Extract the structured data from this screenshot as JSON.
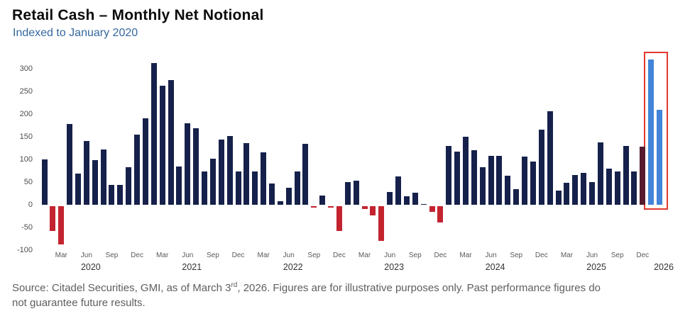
{
  "title": "Retail Cash – Monthly Net Notional",
  "subtitle": "Indexed to January 2020",
  "source_note": {
    "prefix": "Source: Citadel Securities, GMI, as of March 3",
    "superscript": "rd",
    "suffix_line1": ", 2026. Figures are for illustrative purposes only. Past performance figures do",
    "line2": "not guarantee future results."
  },
  "colors": {
    "positive": "#16214B",
    "negative": "#C3242F",
    "highlight": "#4184D9",
    "darkred": "#571A2E",
    "box_outline": "#E0392E",
    "subtitle_text": "#35679E"
  },
  "chart_data": {
    "type": "bar",
    "title": "Retail Cash – Monthly Net Notional",
    "subtitle": "Indexed to January 2020",
    "xlabel": "",
    "ylabel": "",
    "ylim": [
      -100,
      330
    ],
    "yticks": [
      300,
      250,
      200,
      150,
      100,
      50,
      0,
      -50,
      -100
    ],
    "grid": false,
    "legend": "none",
    "month_names": {
      "3": "Mar",
      "6": "Jun",
      "9": "Sep",
      "12": "Dec"
    },
    "year_ticks": [
      {
        "label": "2020",
        "month_index": 5
      },
      {
        "label": "2021",
        "month_index": 17
      },
      {
        "label": "2022",
        "month_index": 29
      },
      {
        "label": "2023",
        "month_index": 41
      },
      {
        "label": "2024",
        "month_index": 53
      },
      {
        "label": "2025",
        "month_index": 65
      },
      {
        "label": "2026",
        "month_index": 73
      }
    ],
    "highlight_from": "2026-01",
    "highlight_note": "red box around Jan–Feb 2026 blue bars",
    "color_overrides": {
      "2025-12": "darkred"
    },
    "points": [
      {
        "m": "2020-01",
        "v": 100
      },
      {
        "m": "2020-02",
        "v": -55
      },
      {
        "m": "2020-03",
        "v": -85
      },
      {
        "m": "2020-04",
        "v": 178
      },
      {
        "m": "2020-05",
        "v": 68
      },
      {
        "m": "2020-06",
        "v": 140
      },
      {
        "m": "2020-07",
        "v": 98
      },
      {
        "m": "2020-08",
        "v": 122
      },
      {
        "m": "2020-09",
        "v": 43
      },
      {
        "m": "2020-10",
        "v": 43
      },
      {
        "m": "2020-11",
        "v": 83
      },
      {
        "m": "2020-12",
        "v": 155
      },
      {
        "m": "2021-01",
        "v": 190
      },
      {
        "m": "2021-02",
        "v": 312
      },
      {
        "m": "2021-03",
        "v": 262
      },
      {
        "m": "2021-04",
        "v": 275
      },
      {
        "m": "2021-05",
        "v": 84
      },
      {
        "m": "2021-06",
        "v": 180
      },
      {
        "m": "2021-07",
        "v": 168
      },
      {
        "m": "2021-08",
        "v": 74
      },
      {
        "m": "2021-09",
        "v": 102
      },
      {
        "m": "2021-10",
        "v": 143
      },
      {
        "m": "2021-11",
        "v": 152
      },
      {
        "m": "2021-12",
        "v": 73
      },
      {
        "m": "2022-01",
        "v": 136
      },
      {
        "m": "2022-02",
        "v": 73
      },
      {
        "m": "2022-03",
        "v": 115
      },
      {
        "m": "2022-04",
        "v": 47
      },
      {
        "m": "2022-05",
        "v": 8
      },
      {
        "m": "2022-06",
        "v": 38
      },
      {
        "m": "2022-07",
        "v": 73
      },
      {
        "m": "2022-08",
        "v": 135
      },
      {
        "m": "2022-09",
        "v": -2
      },
      {
        "m": "2022-10",
        "v": 20
      },
      {
        "m": "2022-11",
        "v": -2
      },
      {
        "m": "2022-12",
        "v": -54
      },
      {
        "m": "2023-01",
        "v": 50
      },
      {
        "m": "2023-02",
        "v": 53
      },
      {
        "m": "2023-03",
        "v": -6
      },
      {
        "m": "2023-04",
        "v": -20
      },
      {
        "m": "2023-05",
        "v": -76
      },
      {
        "m": "2023-06",
        "v": 28
      },
      {
        "m": "2023-07",
        "v": 62
      },
      {
        "m": "2023-08",
        "v": 18
      },
      {
        "m": "2023-09",
        "v": 27
      },
      {
        "m": "2023-10",
        "v": 2
      },
      {
        "m": "2023-11",
        "v": -12
      },
      {
        "m": "2023-12",
        "v": -36
      },
      {
        "m": "2024-01",
        "v": 130
      },
      {
        "m": "2024-02",
        "v": 117
      },
      {
        "m": "2024-03",
        "v": 150
      },
      {
        "m": "2024-04",
        "v": 120
      },
      {
        "m": "2024-05",
        "v": 83
      },
      {
        "m": "2024-06",
        "v": 108
      },
      {
        "m": "2024-07",
        "v": 108
      },
      {
        "m": "2024-08",
        "v": 64
      },
      {
        "m": "2024-09",
        "v": 35
      },
      {
        "m": "2024-10",
        "v": 107
      },
      {
        "m": "2024-11",
        "v": 95
      },
      {
        "m": "2024-12",
        "v": 165
      },
      {
        "m": "2025-01",
        "v": 207
      },
      {
        "m": "2025-02",
        "v": 32
      },
      {
        "m": "2025-03",
        "v": 48
      },
      {
        "m": "2025-04",
        "v": 65
      },
      {
        "m": "2025-05",
        "v": 70
      },
      {
        "m": "2025-06",
        "v": 50
      },
      {
        "m": "2025-07",
        "v": 137
      },
      {
        "m": "2025-08",
        "v": 79
      },
      {
        "m": "2025-09",
        "v": 73
      },
      {
        "m": "2025-10",
        "v": 130
      },
      {
        "m": "2025-11",
        "v": 74
      },
      {
        "m": "2025-12",
        "v": 128
      },
      {
        "m": "2026-01",
        "v": 320
      },
      {
        "m": "2026-02",
        "v": 210
      }
    ]
  }
}
